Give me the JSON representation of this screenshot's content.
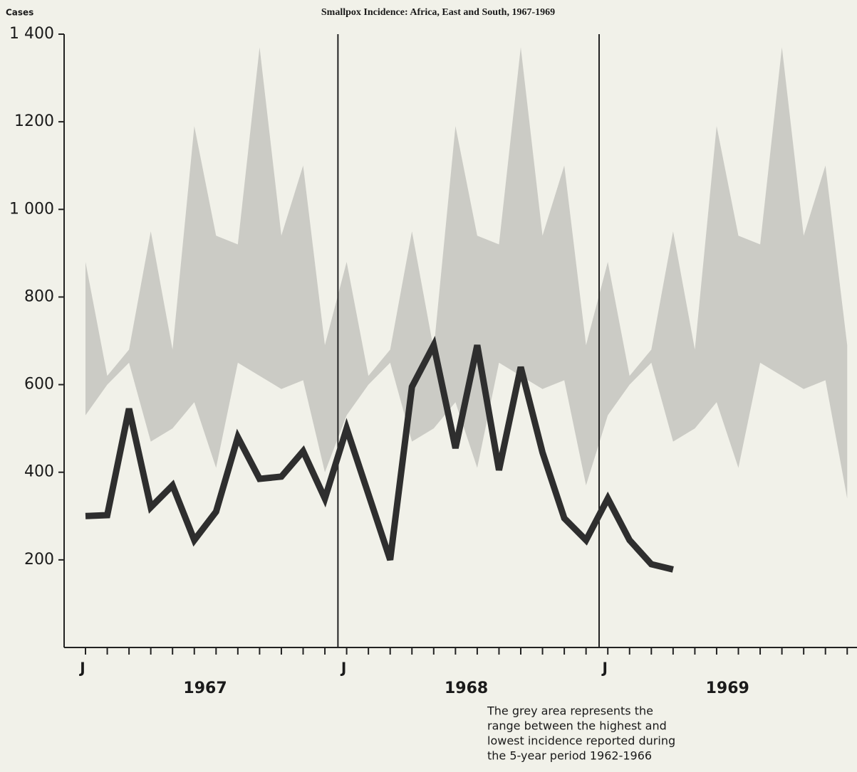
{
  "chart_data": {
    "type": "line",
    "title": "Smallpox Incidence: Africa, East and South, 1967-1969",
    "y_label": "Cases",
    "categories": [
      "J",
      null,
      null,
      null,
      null,
      null,
      null,
      null,
      null,
      null,
      null,
      null,
      "J",
      null,
      null,
      null,
      null,
      null,
      null,
      null,
      null,
      null,
      null,
      null,
      "J",
      null,
      null,
      null,
      null,
      null,
      null,
      null,
      null,
      null,
      null,
      null
    ],
    "year_labels": [
      "1967",
      "1968",
      "1969"
    ],
    "series": [
      {
        "color": "#2e2e2e",
        "values": [
          300,
          302,
          545,
          320,
          370,
          245,
          310,
          480,
          385,
          390,
          448,
          340,
          500,
          350,
          200,
          595,
          690,
          455,
          690,
          405,
          640,
          445,
          295,
          245,
          340,
          245,
          190,
          178,
          null,
          null,
          null,
          null,
          null,
          null,
          null,
          null
        ]
      }
    ],
    "range": {
      "color": "#bdbdb8",
      "upper": [
        880,
        620,
        680,
        950,
        680,
        1190,
        940,
        920,
        1370,
        940,
        1100,
        690,
        880,
        620,
        680,
        950,
        680,
        1190,
        940,
        920,
        1370,
        940,
        1100,
        690,
        880,
        620,
        680,
        950,
        680,
        1190,
        940,
        920,
        1370,
        940,
        1100,
        690
      ],
      "lower": [
        530,
        600,
        650,
        470,
        500,
        560,
        410,
        650,
        620,
        590,
        610,
        400,
        530,
        600,
        650,
        470,
        500,
        560,
        410,
        650,
        620,
        590,
        610,
        370,
        530,
        600,
        650,
        470,
        500,
        560,
        410,
        650,
        620,
        590,
        610,
        340
      ]
    },
    "ylim": [
      0,
      1400
    ],
    "yticks": [
      200,
      400,
      600,
      800,
      {
        "value": 1000,
        "label": "1 000"
      },
      1200,
      {
        "value": 1400,
        "label": "1 400"
      }
    ],
    "note": [
      "The grey area represents  the",
      "range between the highest and",
      "lowest incidence reported during",
      "the  5-year  period  1962-1966"
    ]
  }
}
